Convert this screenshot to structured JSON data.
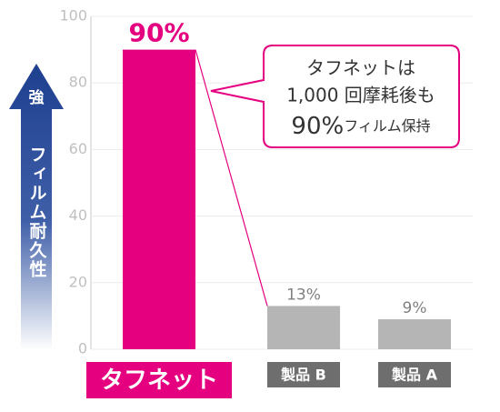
{
  "chart_data": {
    "type": "bar",
    "categories": [
      "タフネット",
      "製品 B",
      "製品 A"
    ],
    "values": [
      90,
      13,
      9
    ],
    "value_labels": [
      "90%",
      "13%",
      "9%"
    ],
    "colors": [
      "#e4007f",
      "#b5b5b5",
      "#b5b5b5"
    ],
    "label_colors": [
      "#e4007f",
      "#6e6e6e",
      "#6e6e6e"
    ],
    "value_label_colors": [
      "#e4007f",
      "#808080",
      "#808080"
    ],
    "ylim": [
      0,
      100
    ],
    "yticks": [
      0,
      20,
      40,
      60,
      80,
      100
    ],
    "grid": true,
    "axis_top_label": "強",
    "axis_label": "フィルム耐久性",
    "annotation": {
      "line1": "タフネットは",
      "line2": "1,000 回摩耗後も",
      "big": "90%",
      "rest": "フィルム保持"
    }
  }
}
